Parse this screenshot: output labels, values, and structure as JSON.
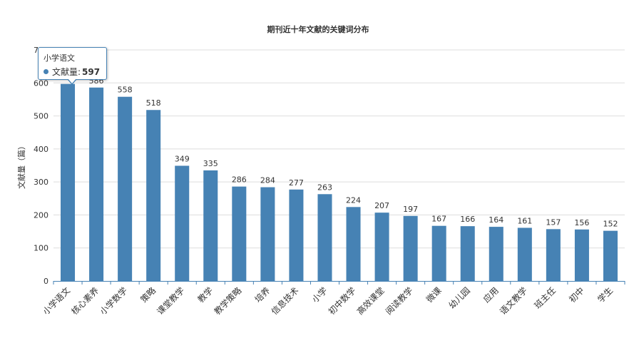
{
  "chart_data": {
    "type": "bar",
    "title": "期刊近十年文献的关键词分布",
    "xlabel": "",
    "ylabel": "文献量（篇）",
    "ylim": [
      0,
      700
    ],
    "yticks": [
      0,
      100,
      200,
      300,
      400,
      500,
      600,
      700
    ],
    "grid": true,
    "bar_color": "#4682b4",
    "categories": [
      "小学语文",
      "核心素养",
      "小学数学",
      "策略",
      "课堂教学",
      "教学",
      "教学策略",
      "培养",
      "信息技术",
      "小学",
      "初中数学",
      "高效课堂",
      "阅读教学",
      "微课",
      "幼儿园",
      "应用",
      "语文教学",
      "班主任",
      "初中",
      "学生"
    ],
    "series": [
      {
        "name": "文献量",
        "values": [
          597,
          586,
          558,
          518,
          349,
          335,
          286,
          284,
          277,
          263,
          224,
          207,
          197,
          167,
          166,
          164,
          161,
          157,
          156,
          152
        ]
      }
    ]
  },
  "tooltip": {
    "category": "小学语文",
    "series_label": "文献量:",
    "value": "597"
  }
}
